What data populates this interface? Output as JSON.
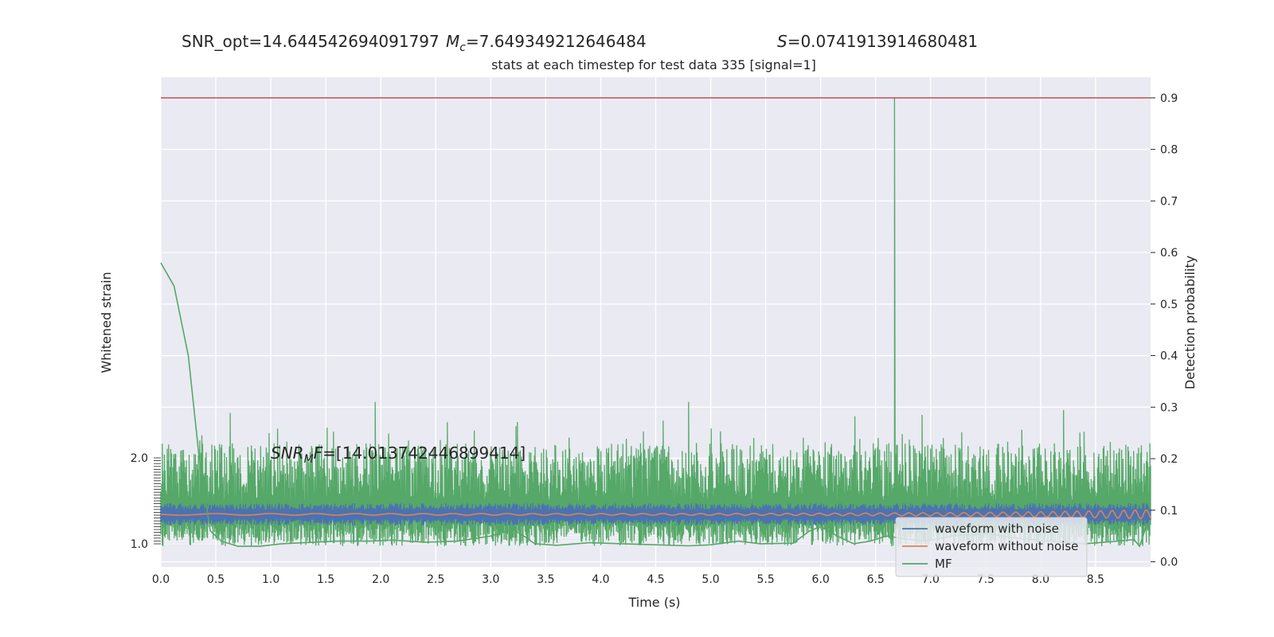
{
  "header": {
    "snr_opt": "SNR_opt=14.644542694091797",
    "mc_symbol": "M",
    "mc_sub": "c",
    "mc_value": "=7.649349212646484",
    "s_symbol": "S",
    "s_value": "=0.0741913914680481",
    "subtitle": "stats at each timestep for test data 335 [signal=1]"
  },
  "annotation": {
    "snr_mf_symbol": "SNR",
    "snr_mf_sub": "M",
    "snr_mf_rest": "F",
    "snr_mf_value": "=[14.013742446899414]"
  },
  "colors": {
    "plot_bg": "#eaeaf2",
    "grid": "#ffffff",
    "noise": "#4c72b0",
    "clean": "#dd8452",
    "mf": "#55a868",
    "threshold": "#c44e52"
  },
  "chart_data": {
    "type": "line",
    "xlabel": "Time (s)",
    "ylabel_left": "Whitened strain",
    "ylabel_right": "Detection probability",
    "xlim": [
      0.0,
      9.0
    ],
    "ylim_right": [
      -0.01,
      0.94
    ],
    "ylim_left": [
      -1.0,
      2.0
    ],
    "x_ticks": [
      "0.0",
      "0.5",
      "1.0",
      "1.5",
      "2.0",
      "2.5",
      "3.0",
      "3.5",
      "4.0",
      "4.5",
      "5.0",
      "5.5",
      "6.0",
      "6.5",
      "7.0",
      "7.5",
      "8.0",
      "8.5"
    ],
    "right_ticks": [
      "0.0",
      "0.1",
      "0.2",
      "0.3",
      "0.4",
      "0.5",
      "0.6",
      "0.7",
      "0.8",
      "0.9"
    ],
    "left_ticks_top": "2.0",
    "left_ticks_bottom": "1.0",
    "threshold": 0.9,
    "legend": {
      "position": "lower-right",
      "entries": [
        "waveform with noise",
        "waveform without noise",
        "MF"
      ]
    },
    "mf_smooth": {
      "x": [
        0.0,
        0.12,
        0.25,
        0.35,
        0.45,
        0.55,
        0.7,
        0.9,
        1.1,
        1.3,
        1.6,
        1.9,
        2.1,
        2.4,
        2.7,
        3.0,
        3.2,
        3.3,
        3.4,
        3.6,
        3.9,
        4.2,
        4.5,
        4.8,
        5.0,
        5.25,
        5.45,
        5.75,
        5.9,
        6.0,
        6.15,
        6.3,
        6.45,
        6.6,
        6.75,
        6.95,
        7.2,
        7.5,
        7.8,
        8.1,
        8.4,
        8.7,
        8.85,
        8.9,
        8.97
      ],
      "y": [
        0.58,
        0.535,
        0.4,
        0.2,
        0.06,
        0.04,
        0.03,
        0.03,
        0.035,
        0.037,
        0.04,
        0.04,
        0.042,
        0.038,
        0.04,
        0.05,
        0.063,
        0.05,
        0.035,
        0.032,
        0.037,
        0.035,
        0.033,
        0.031,
        0.033,
        0.04,
        0.035,
        0.036,
        0.06,
        0.068,
        0.05,
        0.035,
        0.04,
        0.05,
        0.045,
        0.04,
        0.05,
        0.055,
        0.045,
        0.04,
        0.035,
        0.04,
        0.043,
        0.03,
        0.075
      ]
    },
    "detection_probability_noise": {
      "range": [
        0.03,
        0.3
      ],
      "peaks": [
        {
          "x": 6.67,
          "y": 0.9
        },
        {
          "x": 1.95,
          "y": 0.31
        },
        {
          "x": 4.8,
          "y": 0.31
        }
      ]
    }
  }
}
